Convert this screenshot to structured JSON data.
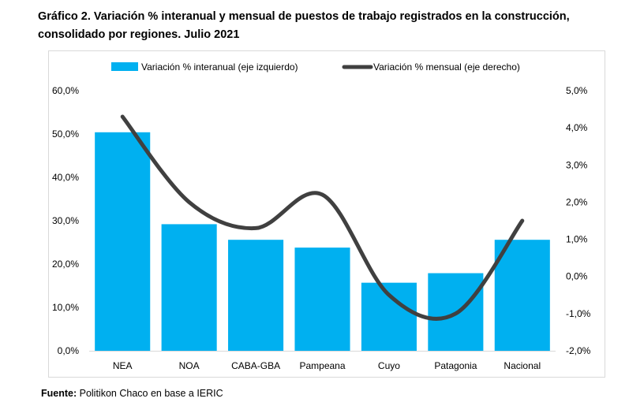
{
  "title": "Gráfico 2. Variación % interanual y mensual de puestos de trabajo registrados en la construcción, consolidado por regiones. Julio 2021",
  "source_label": "Fuente:",
  "source_text": " Politikon Chaco en base a IERIC",
  "chart_data": {
    "type": "bar",
    "categories": [
      "NEA",
      "NOA",
      "CABA-GBA",
      "Pampeana",
      "Cuyo",
      "Patagonia",
      "Nacional"
    ],
    "series": [
      {
        "name": "Variación % interanual (eje izquierdo)",
        "type": "bar",
        "axis": "left",
        "color": "#00b0f0",
        "values": [
          50.4,
          29.2,
          25.6,
          23.8,
          15.7,
          17.9,
          25.6
        ]
      },
      {
        "name": "Variación % mensual (eje derecho)",
        "type": "line",
        "axis": "right",
        "color": "#404040",
        "values": [
          4.3,
          2.0,
          1.3,
          2.2,
          -0.5,
          -1.0,
          1.5
        ]
      }
    ],
    "y_left": {
      "min": 0,
      "max": 60,
      "step": 10,
      "tick_labels": [
        "0,0%",
        "10,0%",
        "20,0%",
        "30,0%",
        "40,0%",
        "50,0%",
        "60,0%"
      ]
    },
    "y_right": {
      "min": -2,
      "max": 5,
      "step": 1,
      "tick_labels": [
        "-2,0%",
        "-1,0%",
        "0,0%",
        "1,0%",
        "2,0%",
        "3,0%",
        "4,0%",
        "5,0%"
      ]
    },
    "legend_position": "top",
    "grid": false
  }
}
